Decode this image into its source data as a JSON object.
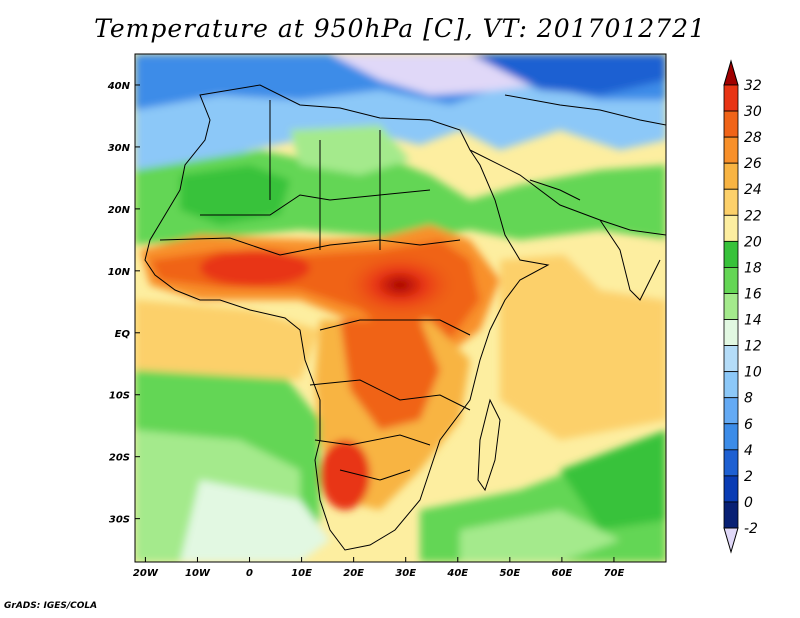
{
  "title": "Temperature at 950hPa [C], VT: 2017012721",
  "credit": "GrADS: IGES/COLA",
  "map": {
    "lon_range": [
      -22,
      80
    ],
    "lat_range": [
      -37,
      45
    ],
    "lon_ticks": [
      {
        "value": -20,
        "label": "20W"
      },
      {
        "value": -10,
        "label": "10W"
      },
      {
        "value": 0,
        "label": "0"
      },
      {
        "value": 10,
        "label": "10E"
      },
      {
        "value": 20,
        "label": "20E"
      },
      {
        "value": 30,
        "label": "30E"
      },
      {
        "value": 40,
        "label": "40E"
      },
      {
        "value": 50,
        "label": "50E"
      },
      {
        "value": 60,
        "label": "60E"
      },
      {
        "value": 70,
        "label": "70E"
      }
    ],
    "lat_ticks": [
      {
        "value": 40,
        "label": "40N"
      },
      {
        "value": 30,
        "label": "30N"
      },
      {
        "value": 20,
        "label": "20N"
      },
      {
        "value": 10,
        "label": "10N"
      },
      {
        "value": 0,
        "label": "EQ"
      },
      {
        "value": -10,
        "label": "10S"
      },
      {
        "value": -20,
        "label": "20S"
      },
      {
        "value": -30,
        "label": "30S"
      }
    ],
    "field": "temperature_950hPa",
    "units": "C"
  },
  "colorbar": {
    "levels": [
      32,
      30,
      28,
      26,
      24,
      22,
      20,
      18,
      16,
      14,
      12,
      10,
      8,
      6,
      4,
      2,
      0,
      -2
    ],
    "labels": [
      "32",
      "30",
      "28",
      "26",
      "24",
      "22",
      "20",
      "18",
      "16",
      "14",
      "12",
      "10",
      "8",
      "6",
      "4",
      "2",
      "0",
      "-2"
    ],
    "colors": [
      "#a00000",
      "#e83414",
      "#f06418",
      "#f8902a",
      "#f8b443",
      "#fcd06a",
      "#fdeea0",
      "#37c23a",
      "#64d655",
      "#a4ea8c",
      "#e2f8e2",
      "#b4dcf8",
      "#8cc8f8",
      "#64aaf4",
      "#3c8ce8",
      "#1e60d2",
      "#0a3cb4",
      "#082074",
      "#e0d8f8"
    ]
  }
}
